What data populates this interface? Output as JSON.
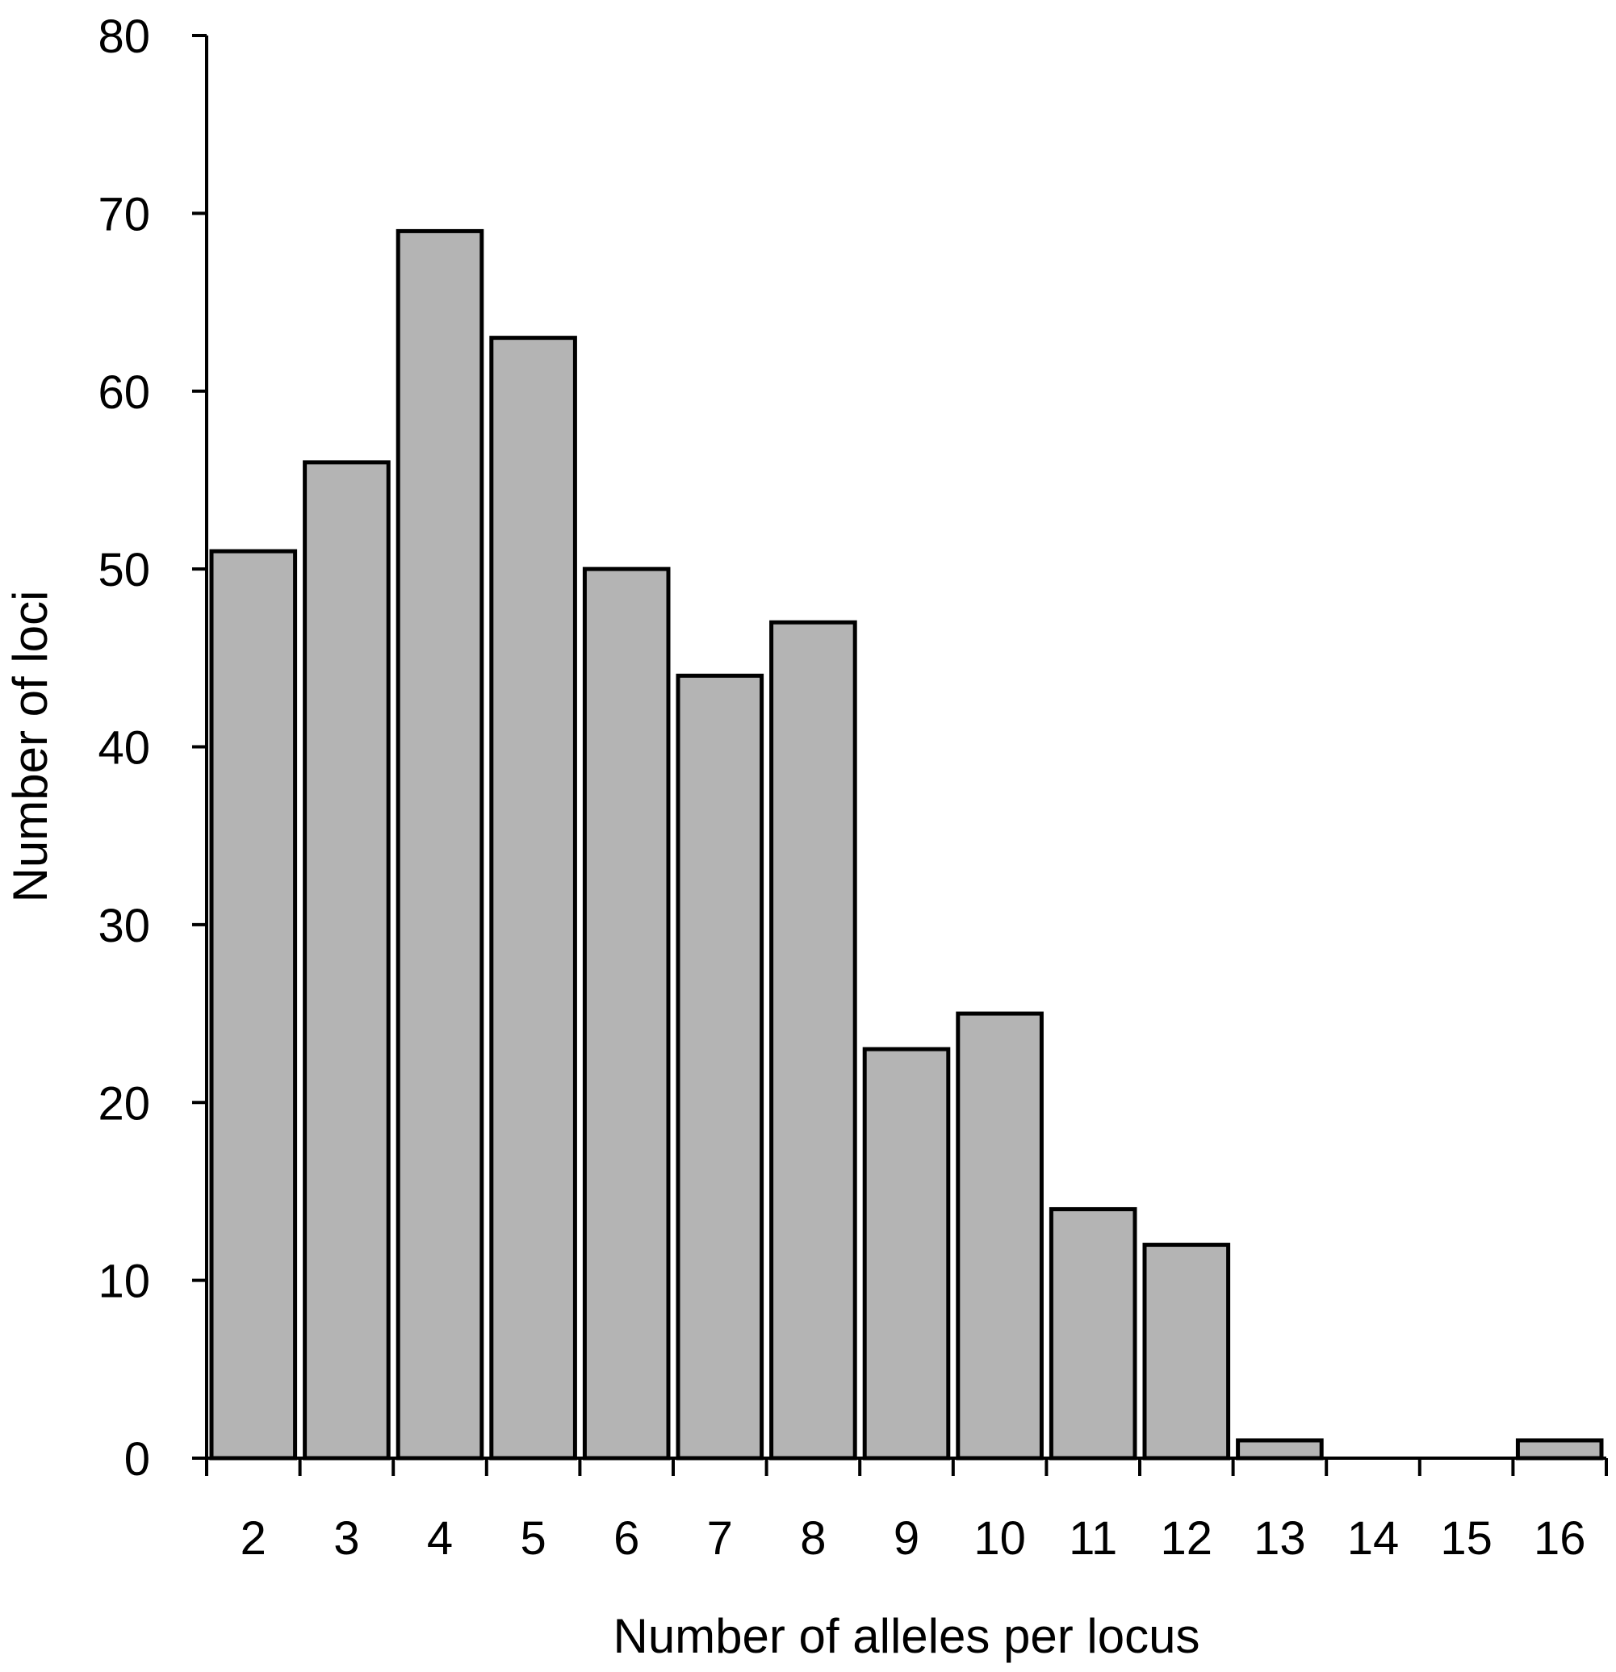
{
  "chart_data": {
    "type": "bar",
    "title": "",
    "xlabel": "Number of alleles per locus",
    "ylabel": "Number of loci",
    "categories": [
      "2",
      "3",
      "4",
      "5",
      "6",
      "7",
      "8",
      "9",
      "10",
      "11",
      "12",
      "13",
      "14",
      "15",
      "16"
    ],
    "values": [
      51,
      56,
      69,
      63,
      50,
      44,
      47,
      23,
      25,
      14,
      12,
      1,
      0,
      0,
      1
    ],
    "ylim": [
      0,
      80
    ],
    "yticks": [
      0,
      10,
      20,
      30,
      40,
      50,
      60,
      70,
      80
    ],
    "grid": false,
    "legend": "none",
    "colors": {
      "bar_fill": "#b4b4b4",
      "bar_stroke": "#000000",
      "axis": "#000000"
    }
  }
}
